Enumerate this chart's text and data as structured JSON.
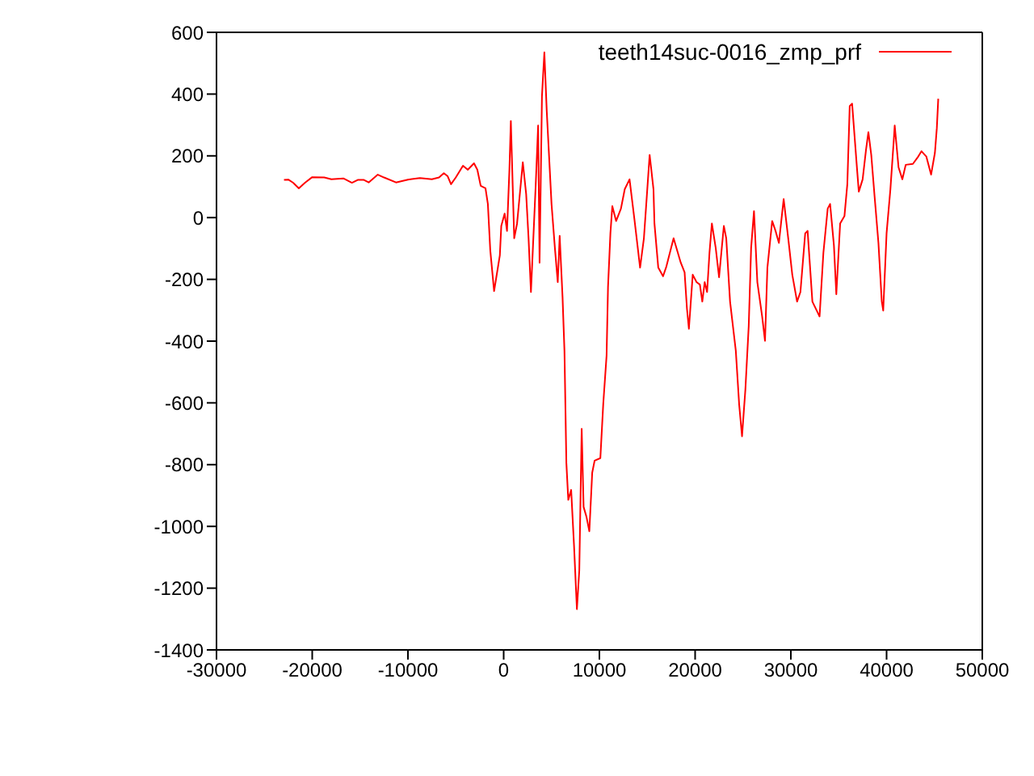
{
  "chart_data": {
    "type": "line",
    "legend": "top right",
    "marker": "none",
    "line_style": "solid",
    "xlim": [
      -30000,
      50000
    ],
    "xticks": [
      -30000,
      -20000,
      -10000,
      0,
      10000,
      20000,
      30000,
      40000,
      50000
    ],
    "ylim": [
      -1400,
      600
    ],
    "yticks": [
      -1400,
      -1200,
      -1000,
      -800,
      -600,
      -400,
      -200,
      0,
      200,
      400,
      600
    ],
    "series": [
      {
        "name": "teeth14suc-0016_zmp_prf",
        "color": "#ff0000",
        "x": [
          -22950,
          -22500,
          -22000,
          -21400,
          -20750,
          -20000,
          -18750,
          -18000,
          -16750,
          -15850,
          -15250,
          -14600,
          -14100,
          -13150,
          -12500,
          -11250,
          -10000,
          -8750,
          -7500,
          -6750,
          -6250,
          -5850,
          -5500,
          -5000,
          -4250,
          -3750,
          -3100,
          -2750,
          -2400,
          -1900,
          -1650,
          -1400,
          -1000,
          -400,
          -250,
          100,
          350,
          600,
          750,
          1100,
          1400,
          2000,
          2350,
          2600,
          2850,
          3350,
          3600,
          3750,
          4000,
          4250,
          4500,
          5000,
          5350,
          5650,
          5850,
          6150,
          6350,
          6550,
          6750,
          7050,
          7350,
          7650,
          7900,
          8150,
          8350,
          8650,
          8950,
          9250,
          9500,
          10100,
          10400,
          10750,
          10900,
          11150,
          11350,
          11750,
          12250,
          12650,
          13150,
          13650,
          14250,
          14650,
          15250,
          15650,
          15750,
          16150,
          16650,
          17000,
          17750,
          18500,
          18900,
          19150,
          19350,
          19750,
          20150,
          20500,
          20750,
          21000,
          21250,
          21500,
          21750,
          22150,
          22500,
          23000,
          23250,
          23650,
          24250,
          24600,
          24900,
          25250,
          25600,
          25850,
          26150,
          26500,
          27000,
          27300,
          27550,
          28050,
          28400,
          28750,
          29250,
          29750,
          30150,
          30650,
          31000,
          31500,
          31750,
          32250,
          32750,
          33000,
          33400,
          33850,
          34100,
          34500,
          34750,
          35150,
          35600,
          35900,
          36150,
          36400,
          36900,
          37100,
          37500,
          37850,
          38100,
          38400,
          38750,
          39150,
          39500,
          39650,
          40000,
          40400,
          40750,
          40850,
          41250,
          41650,
          42000,
          42750,
          43250,
          43650,
          44150,
          44650,
          45050,
          45250,
          45400
        ],
        "values": [
          122,
          123,
          113,
          95,
          113,
          131,
          130,
          124,
          127,
          113,
          122,
          122,
          114,
          139,
          130,
          114,
          123,
          128,
          124,
          130,
          144,
          134,
          108,
          130,
          168,
          155,
          176,
          155,
          103,
          95,
          44,
          -106,
          -238,
          -122,
          -27,
          13,
          -43,
          155,
          313,
          -67,
          -19,
          179,
          76,
          -67,
          -241,
          108,
          298,
          -146,
          393,
          535,
          345,
          44,
          -98,
          -209,
          -59,
          -257,
          -431,
          -795,
          -914,
          -882,
          -1062,
          -1268,
          -1142,
          -684,
          -937,
          -969,
          -1016,
          -826,
          -787,
          -779,
          -605,
          -447,
          -225,
          -51,
          37,
          -11,
          29,
          92,
          124,
          -3,
          -162,
          -67,
          203,
          92,
          -19,
          -162,
          -190,
          -158,
          -67,
          -146,
          -177,
          -296,
          -360,
          -185,
          -209,
          -217,
          -272,
          -209,
          -241,
          -114,
          -19,
          -98,
          -193,
          -27,
          -67,
          -272,
          -431,
          -605,
          -708,
          -557,
          -351,
          -98,
          21,
          -209,
          -320,
          -399,
          -162,
          -11,
          -43,
          -82,
          60,
          -74,
          -185,
          -272,
          -241,
          -51,
          -43,
          -272,
          -304,
          -320,
          -114,
          29,
          44,
          -90,
          -248,
          -19,
          5,
          108,
          361,
          369,
          163,
          84,
          124,
          219,
          277,
          203,
          68,
          -82,
          -272,
          -301,
          -51,
          92,
          250,
          298,
          163,
          124,
          171,
          174,
          195,
          215,
          198,
          139,
          210,
          290,
          385
        ]
      }
    ]
  }
}
